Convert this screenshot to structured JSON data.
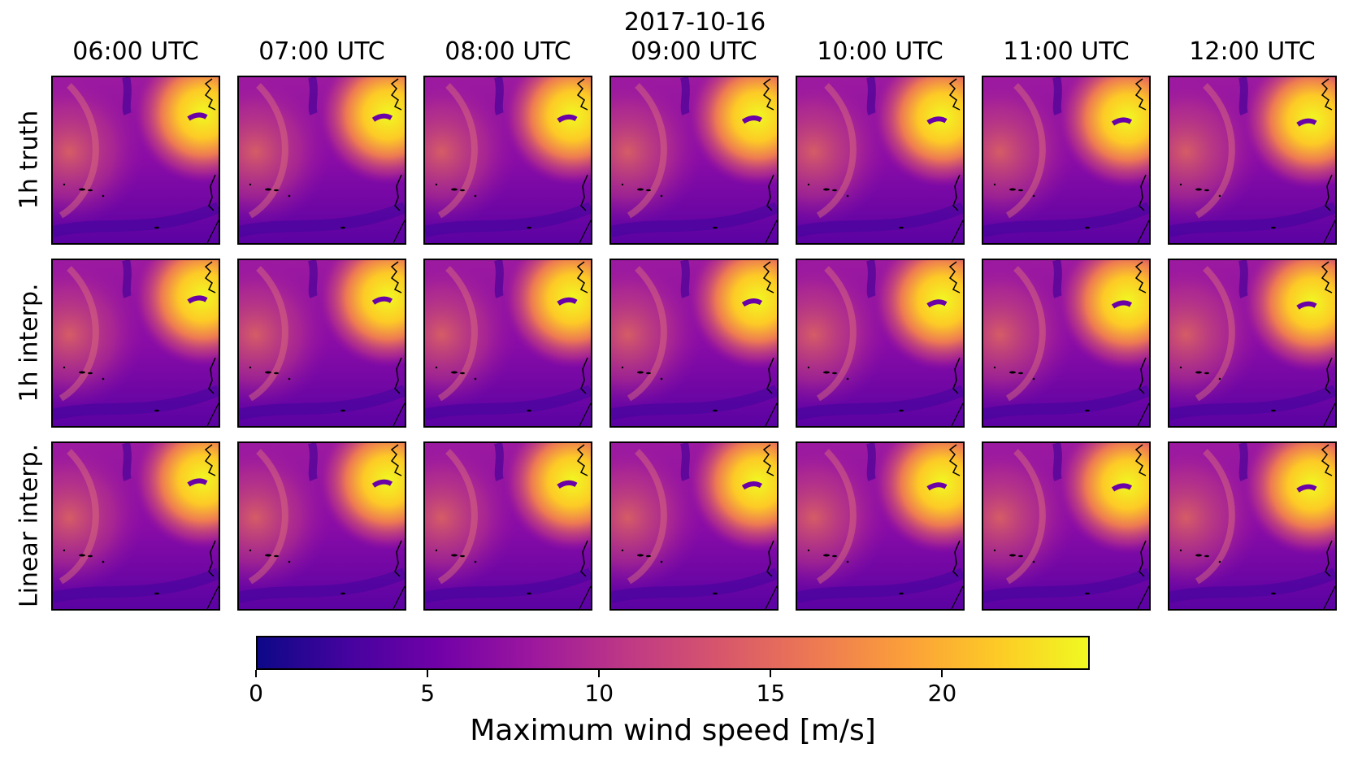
{
  "chart_data": {
    "type": "heatmap",
    "title": "2017-10-16",
    "columns": [
      "06:00 UTC",
      "07:00 UTC",
      "08:00 UTC",
      "09:00 UTC",
      "10:00 UTC",
      "11:00 UTC",
      "12:00 UTC"
    ],
    "rows": [
      "1h truth",
      "1h interp.",
      "Linear interp."
    ],
    "colorbar": {
      "label": "Maximum wind speed [m/s]",
      "colormap": "plasma",
      "range": [
        0,
        24.3
      ],
      "ticks": [
        0,
        5,
        10,
        15,
        20
      ],
      "tick_labels": [
        "0",
        "5",
        "10",
        "15",
        "20"
      ]
    }
  }
}
